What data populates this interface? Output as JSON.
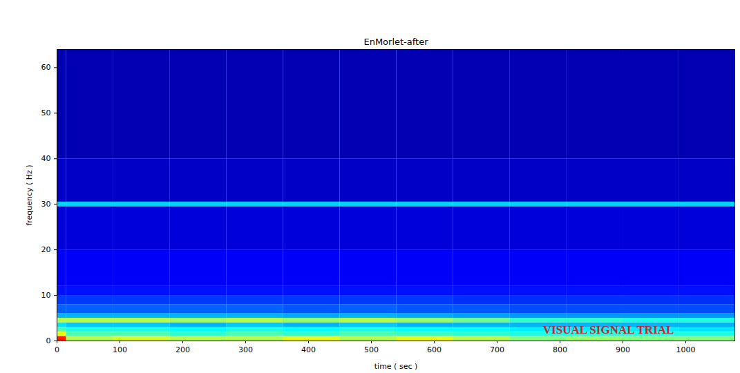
{
  "chart_data": {
    "type": "heatmap",
    "title": "EnMorlet-after",
    "x_label": "time ( sec )",
    "y_label": "frequency ( Hz )",
    "xlim": [
      0,
      1078
    ],
    "ylim": [
      0,
      64
    ],
    "xticks": [
      0,
      100,
      200,
      300,
      400,
      500,
      600,
      700,
      800,
      900,
      1000
    ],
    "yticks": [
      0,
      10,
      20,
      30,
      40,
      50,
      60
    ],
    "grid": false,
    "x_edges": [
      0,
      15,
      90,
      180,
      270,
      360,
      450,
      540,
      630,
      720,
      810,
      900,
      990,
      1078
    ],
    "y_edges": [
      0,
      1,
      2,
      3,
      4,
      5,
      6,
      8,
      10,
      12,
      20,
      29.5,
      30.5,
      40,
      64
    ],
    "cells": [
      [
        0.85,
        0.55,
        0.58,
        0.55,
        0.55,
        0.6,
        0.55,
        0.6,
        0.55,
        0.5,
        0.52,
        0.5,
        0.5
      ],
      [
        0.6,
        0.45,
        0.45,
        0.42,
        0.45,
        0.42,
        0.45,
        0.43,
        0.42,
        0.4,
        0.4,
        0.4,
        0.4
      ],
      [
        0.45,
        0.4,
        0.4,
        0.38,
        0.4,
        0.38,
        0.4,
        0.38,
        0.38,
        0.36,
        0.36,
        0.36,
        0.35
      ],
      [
        0.35,
        0.32,
        0.32,
        0.3,
        0.32,
        0.3,
        0.32,
        0.3,
        0.3,
        0.3,
        0.3,
        0.3,
        0.3
      ],
      [
        0.55,
        0.55,
        0.55,
        0.53,
        0.55,
        0.52,
        0.55,
        0.52,
        0.48,
        0.42,
        0.42,
        0.4,
        0.4
      ],
      [
        0.3,
        0.3,
        0.3,
        0.3,
        0.3,
        0.29,
        0.3,
        0.29,
        0.28,
        0.27,
        0.27,
        0.27,
        0.27
      ],
      [
        0.22,
        0.22,
        0.22,
        0.22,
        0.22,
        0.21,
        0.22,
        0.21,
        0.21,
        0.2,
        0.2,
        0.2,
        0.2
      ],
      [
        0.18,
        0.18,
        0.18,
        0.18,
        0.18,
        0.18,
        0.18,
        0.18,
        0.17,
        0.17,
        0.17,
        0.17,
        0.17
      ],
      [
        0.14,
        0.14,
        0.14,
        0.14,
        0.14,
        0.14,
        0.14,
        0.14,
        0.14,
        0.14,
        0.14,
        0.14,
        0.14
      ],
      [
        0.12,
        0.12,
        0.12,
        0.12,
        0.12,
        0.12,
        0.12,
        0.12,
        0.12,
        0.12,
        0.12,
        0.12,
        0.12
      ],
      [
        0.09,
        0.09,
        0.09,
        0.09,
        0.09,
        0.09,
        0.09,
        0.09,
        0.09,
        0.09,
        0.09,
        0.09,
        0.09
      ],
      [
        0.33,
        0.33,
        0.33,
        0.33,
        0.33,
        0.33,
        0.33,
        0.33,
        0.33,
        0.33,
        0.33,
        0.33,
        0.33
      ],
      [
        0.07,
        0.07,
        0.07,
        0.07,
        0.07,
        0.07,
        0.07,
        0.07,
        0.07,
        0.07,
        0.07,
        0.07,
        0.07
      ],
      [
        0.05,
        0.05,
        0.05,
        0.05,
        0.05,
        0.05,
        0.05,
        0.05,
        0.05,
        0.05,
        0.05,
        0.05,
        0.05
      ]
    ],
    "clim": [
      0,
      1
    ],
    "annotations": [
      {
        "text": "VISUAL SIGNAL TRIAL",
        "x": 877,
        "y": 2.4,
        "color": "#c0282d"
      }
    ]
  }
}
